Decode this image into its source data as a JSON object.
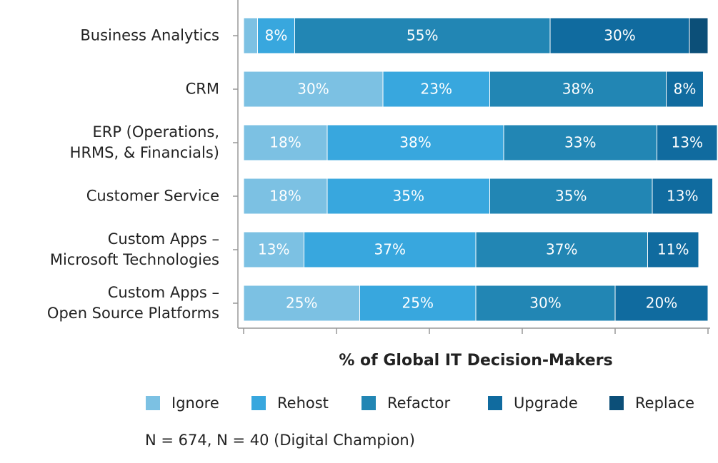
{
  "chart_data": {
    "type": "stacked-bar-horizontal",
    "categories": [
      "Business Analytics",
      "CRM",
      "ERP (Operations,\nHRMS, & Financials)",
      "Customer Service",
      "Custom Apps –\nMicrosoft Technologies",
      "Custom Apps –\nOpen Source Platforms"
    ],
    "series": [
      {
        "name": "Ignore",
        "color": "#7cc1e3",
        "values": [
          3,
          30,
          18,
          18,
          13,
          25
        ],
        "value_labels": [
          null,
          "30%",
          "18%",
          "18%",
          "13%",
          "25%"
        ]
      },
      {
        "name": "Rehost",
        "color": "#38a7de",
        "values": [
          8,
          23,
          38,
          35,
          37,
          25
        ],
        "value_labels": [
          "8%",
          "23%",
          "38%",
          "35%",
          "37%",
          "25%"
        ]
      },
      {
        "name": "Refactor",
        "color": "#2286b4",
        "values": [
          55,
          38,
          33,
          35,
          37,
          30
        ],
        "value_labels": [
          "55%",
          "38%",
          "33%",
          "35%",
          "37%",
          "30%"
        ]
      },
      {
        "name": "Upgrade",
        "color": "#106b9f",
        "values": [
          30,
          8,
          13,
          13,
          11,
          20
        ],
        "value_labels": [
          "30%",
          "8%",
          "13%",
          "13%",
          "11%",
          "20%"
        ]
      },
      {
        "name": "Replace",
        "color": "#0c4f78",
        "values": [
          4,
          0,
          0,
          0,
          0,
          0
        ],
        "value_labels": [
          null,
          null,
          null,
          null,
          null,
          null
        ]
      }
    ],
    "xlabel": "% of Global IT Decision-Makers",
    "note": "N = 674, N = 40 (Digital Champion)",
    "xlim": [
      0,
      100
    ],
    "xticks": [
      0,
      20,
      40,
      60,
      80,
      100
    ],
    "legend": "bottom"
  }
}
